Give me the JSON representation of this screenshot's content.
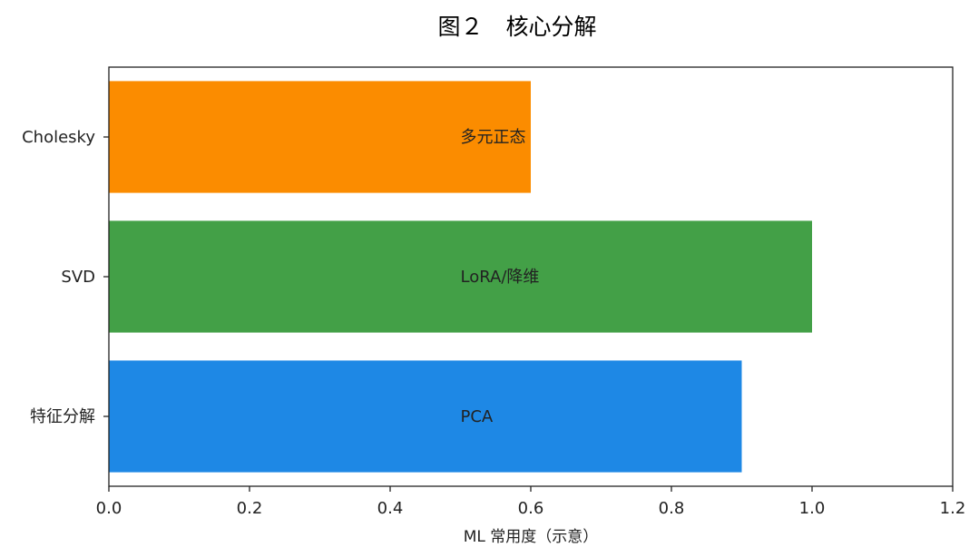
{
  "chart_data": {
    "type": "bar",
    "orientation": "horizontal",
    "title": "图２　核心分解",
    "xlabel": "ML 常用度（示意）",
    "ylabel": "",
    "xlim": [
      0,
      1.2
    ],
    "xticks": [
      "0.0",
      "0.2",
      "0.4",
      "0.6",
      "0.8",
      "1.0",
      "1.2"
    ],
    "xtick_values": [
      0,
      0.2,
      0.4,
      0.6,
      0.8,
      1.0,
      1.2
    ],
    "grid": false,
    "categories": [
      "特征分解",
      "SVD",
      "Cholesky"
    ],
    "values": [
      0.9,
      1.0,
      0.6
    ],
    "bar_labels": [
      "PCA",
      "LoRA/降维",
      "多元正态"
    ],
    "bar_label_x": 0.5,
    "colors": [
      "#1e88e5",
      "#43a047",
      "#fb8c00"
    ]
  }
}
